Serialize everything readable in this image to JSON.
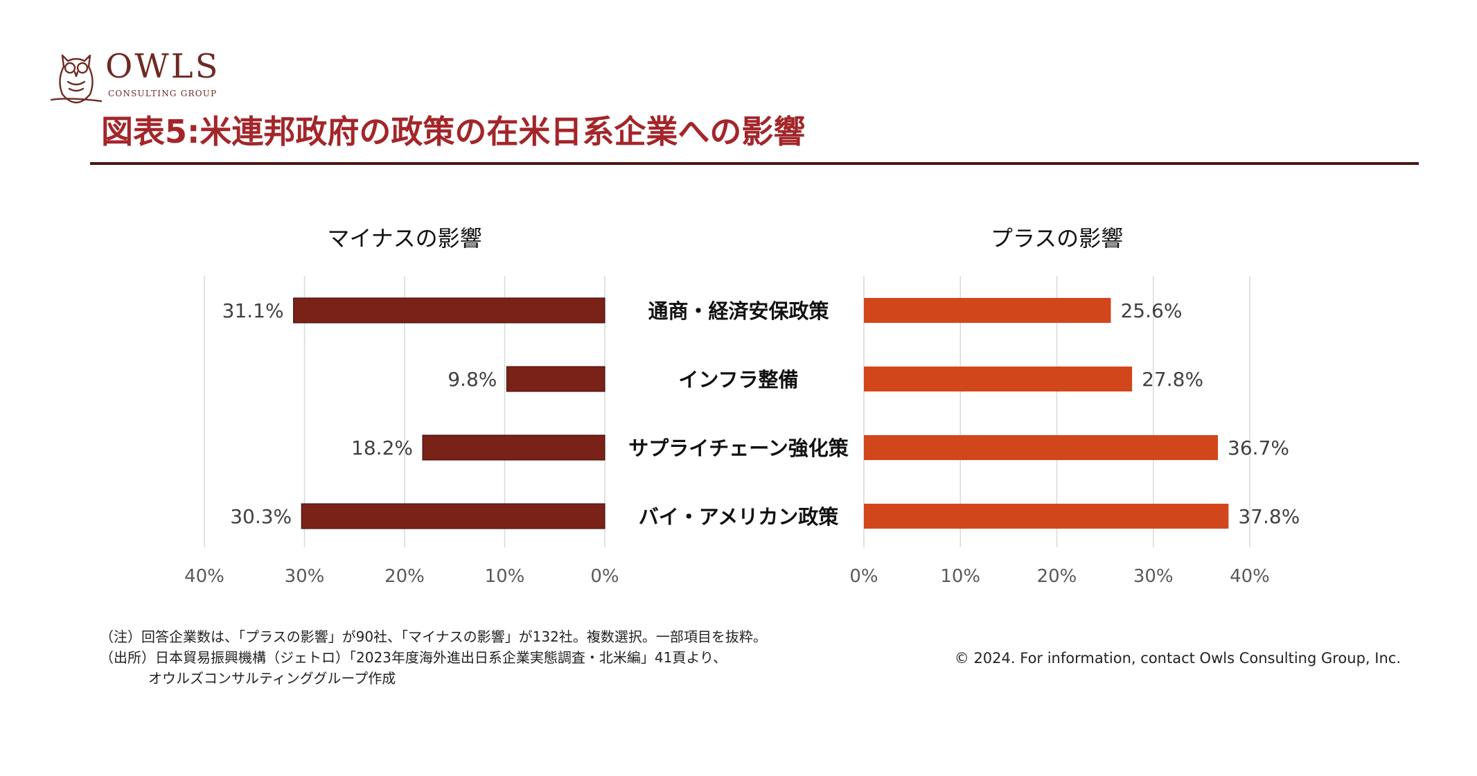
{
  "logo": {
    "name": "OWLS",
    "subtitle": "CONSULTING GROUP",
    "icon": "owl-icon",
    "color": "#6e2a24"
  },
  "title": "図表5:米連邦政府の政策の在米日系企業への影響",
  "title_color": "#a3262a",
  "chart_data": {
    "type": "bar",
    "orientation": "horizontal",
    "categories": [
      "通商・経済安保政策",
      "インフラ整備",
      "サプライチェーン強化策",
      "バイ・アメリカン政策"
    ],
    "series": [
      {
        "name": "マイナスの影響",
        "values": [
          31.1,
          9.8,
          18.2,
          30.3
        ],
        "labels": [
          "31.1%",
          "9.8%",
          "18.2%",
          "30.3%"
        ],
        "color": "#7a2118"
      },
      {
        "name": "プラスの影響",
        "values": [
          25.6,
          27.8,
          36.7,
          37.8
        ],
        "labels": [
          "25.6%",
          "27.8%",
          "36.7%",
          "37.8%"
        ],
        "color": "#d2461c"
      }
    ],
    "xlim": [
      0,
      40
    ],
    "left_ticks": [
      "40%",
      "30%",
      "20%",
      "10%",
      "0%"
    ],
    "right_ticks": [
      "0%",
      "10%",
      "20%",
      "30%",
      "40%"
    ],
    "grid": true
  },
  "notes": [
    "（注）回答企業数は、「プラスの影響」が90社、「マイナスの影響」が132社。複数選択。一部項目を抜粋。",
    "（出所）日本貿易振興機構（ジェトロ）「2023年度海外進出日系企業実態調査・北米編」41頁より、",
    "オウルズコンサルティンググループ作成"
  ],
  "copyright": "© 2024. For information, contact Owls Consulting Group, Inc."
}
